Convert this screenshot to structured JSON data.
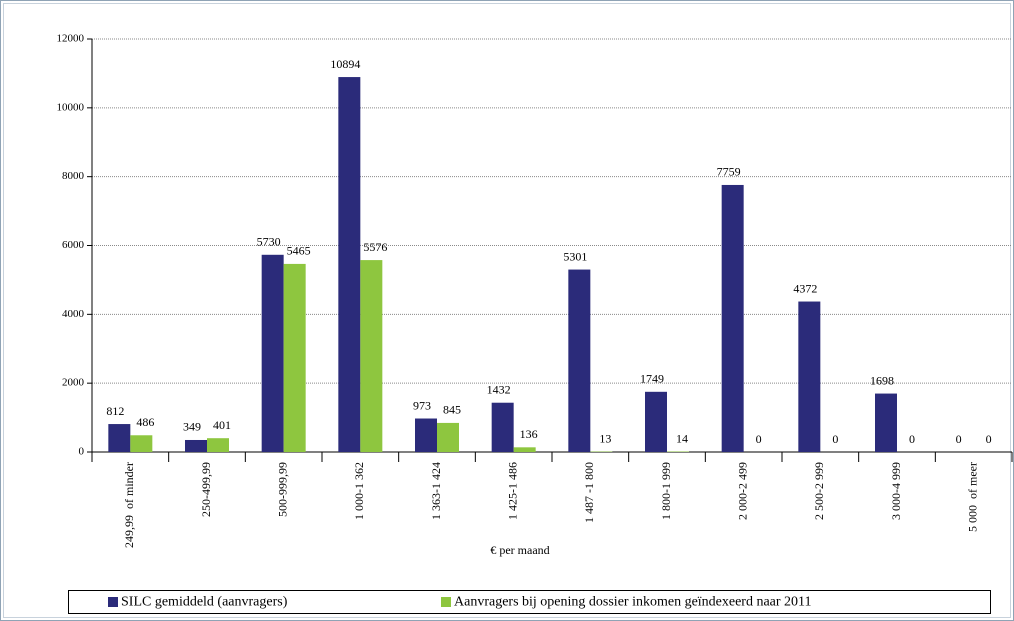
{
  "chart_data": {
    "type": "bar",
    "x_label": "€ per maand",
    "categories": [
      "249,99  of minder",
      "250-499,99",
      "500-999,99",
      "1 000-1 362",
      "1 363-1 424",
      "1 425-1 486",
      "1 487 -1 800",
      "1 800-1 999",
      "2 000-2 499",
      "2 500-2 999",
      "3 000-4 999",
      "5 000  of meer"
    ],
    "series": [
      {
        "name": "SILC gemiddeld (aanvragers)",
        "color": "#2b2b7a",
        "values": [
          812,
          349,
          5730,
          10894,
          973,
          1432,
          5301,
          1749,
          7759,
          4372,
          1698,
          0
        ]
      },
      {
        "name": "Aanvragers bij opening dossier inkomen geïndexeerd naar 2011",
        "color": "#8ec63f",
        "values": [
          486,
          401,
          5465,
          5576,
          845,
          136,
          13,
          14,
          0,
          0,
          0,
          0
        ]
      }
    ],
    "ylim": [
      0,
      12000
    ],
    "yticks": [
      0,
      2000,
      4000,
      6000,
      8000,
      10000,
      12000
    ],
    "grid": true,
    "legend": "bottom"
  }
}
